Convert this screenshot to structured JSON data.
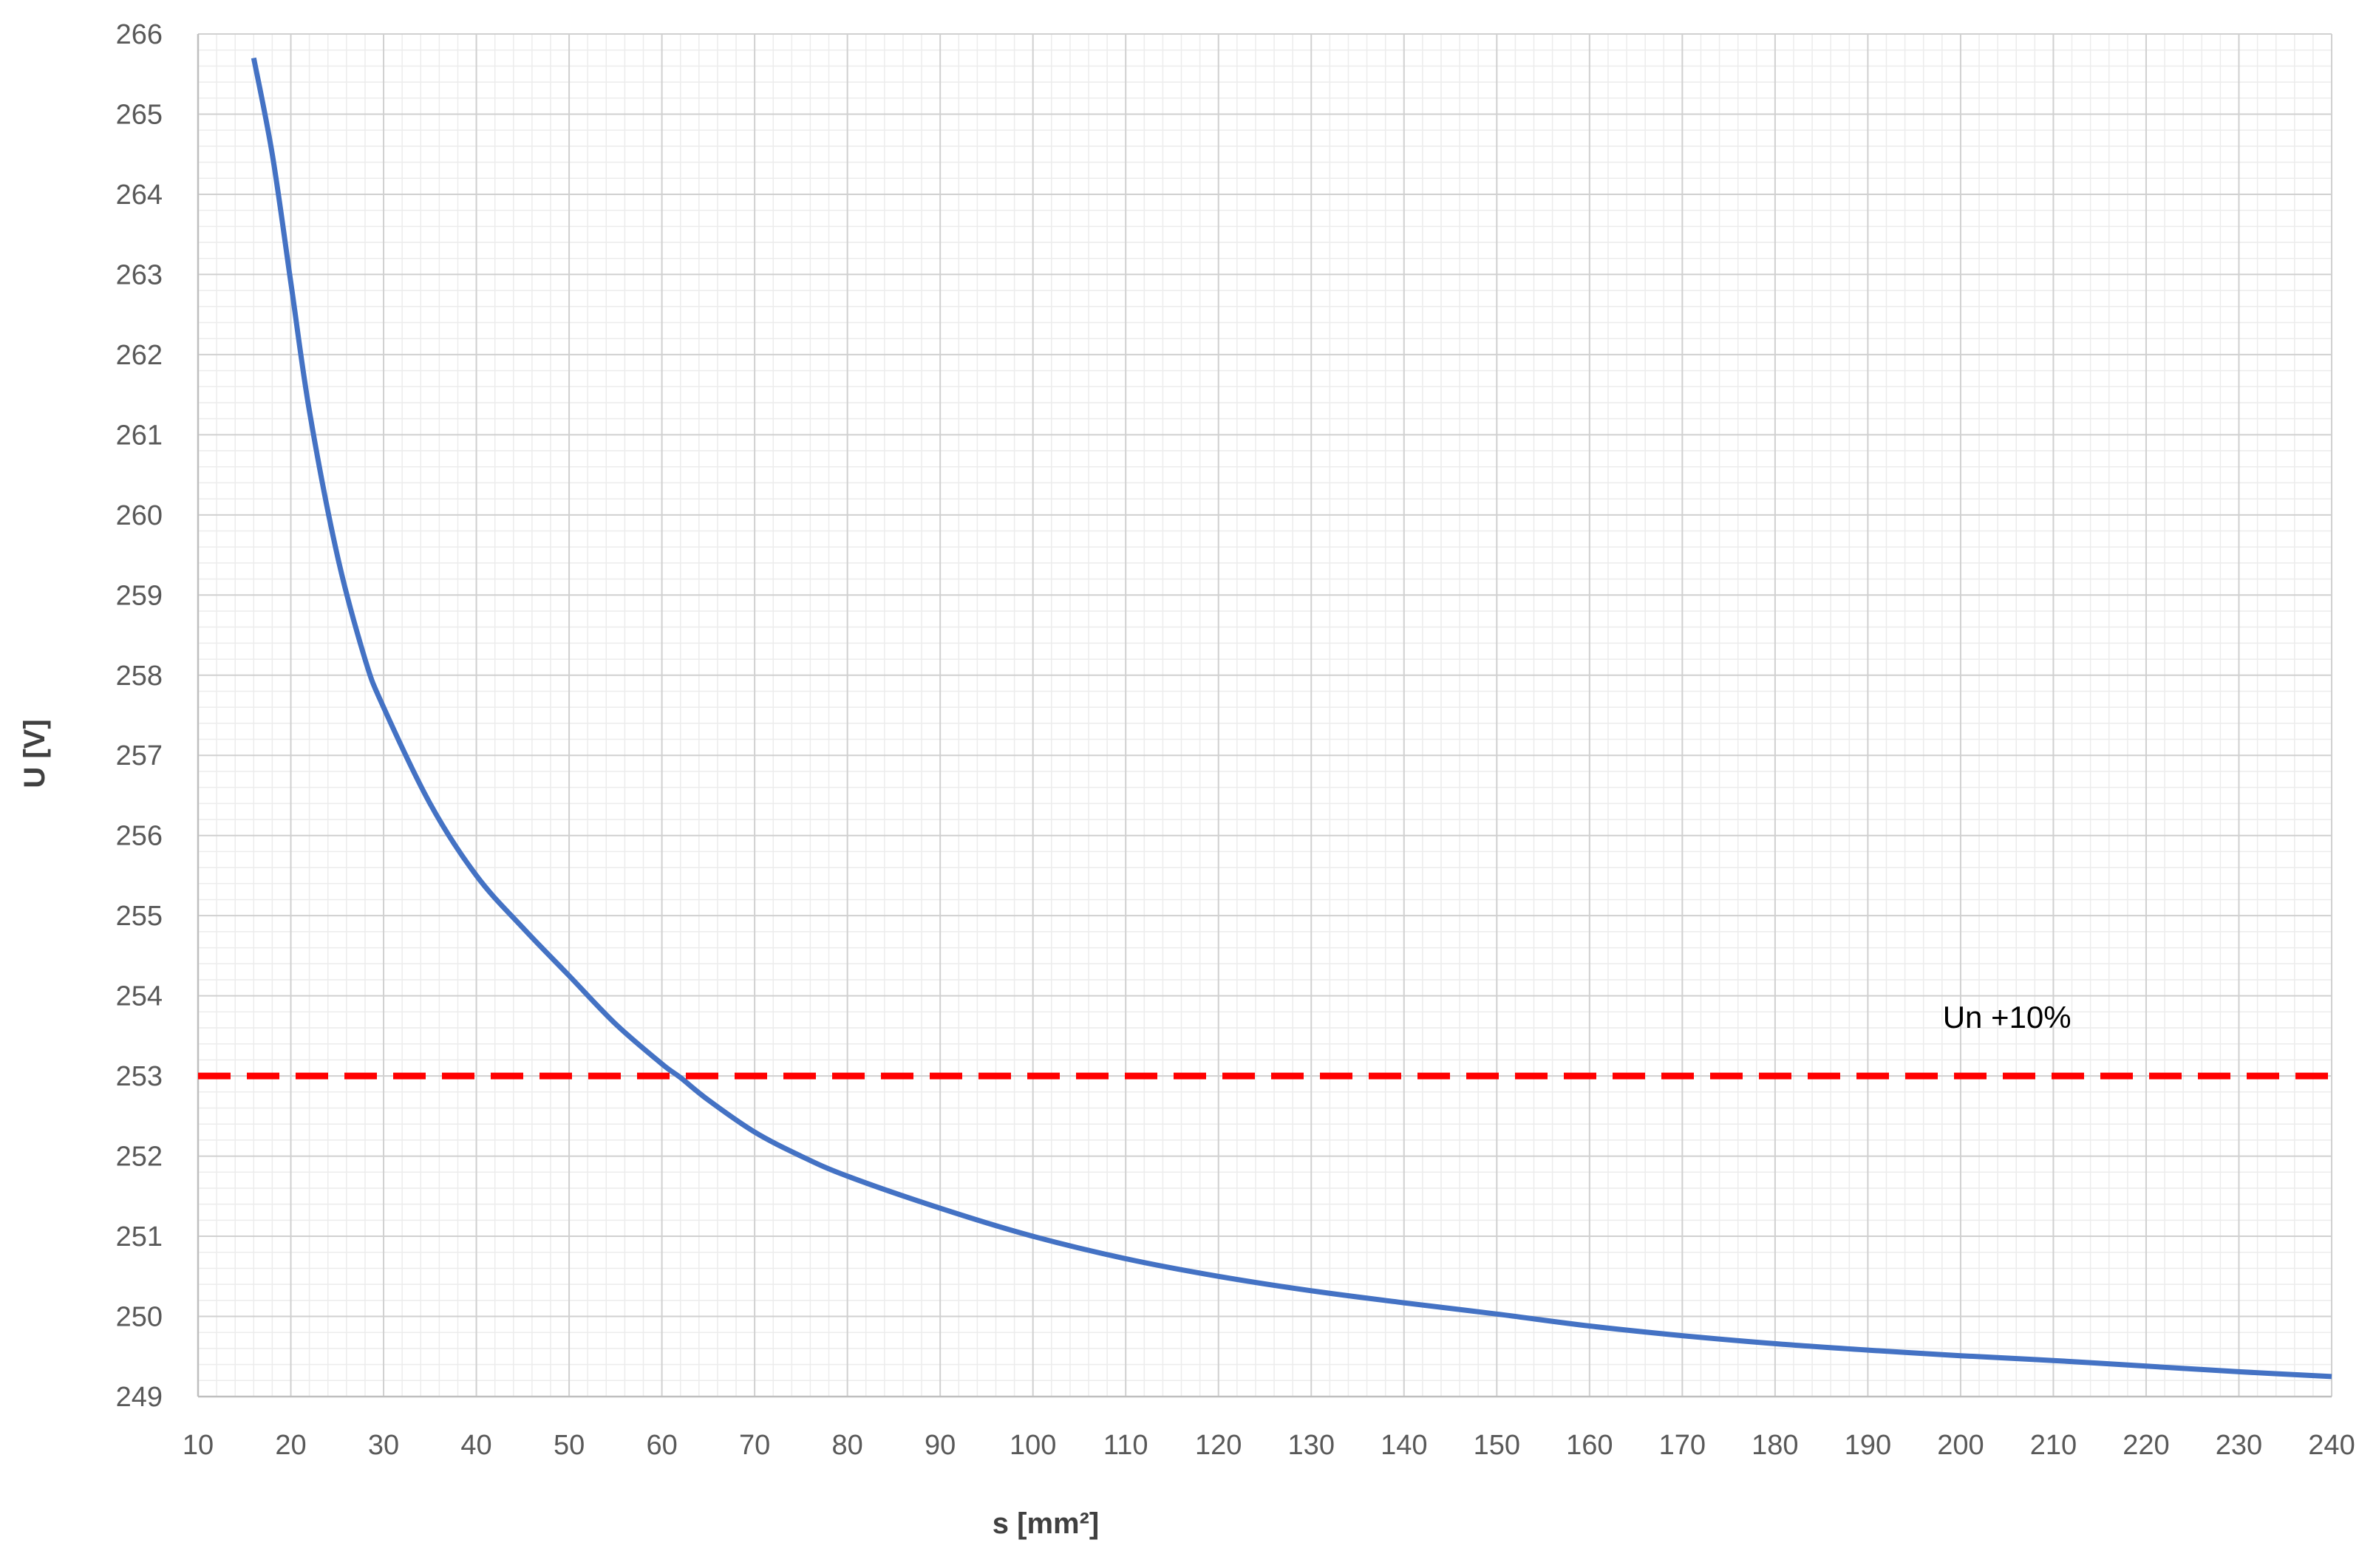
{
  "chart_data": {
    "type": "line",
    "title": "",
    "xlabel": "s [mm²]",
    "ylabel": "U [V]",
    "xlim": [
      10,
      240
    ],
    "ylim": [
      249,
      266
    ],
    "x_ticks": [
      10,
      20,
      30,
      40,
      50,
      60,
      70,
      80,
      90,
      100,
      110,
      120,
      130,
      140,
      150,
      160,
      170,
      180,
      190,
      200,
      210,
      220,
      230,
      240
    ],
    "y_ticks": [
      249,
      250,
      251,
      252,
      253,
      254,
      255,
      256,
      257,
      258,
      259,
      260,
      261,
      262,
      263,
      264,
      265,
      266
    ],
    "x_tick_labels": [
      "10",
      "20",
      "30",
      "40",
      "50",
      "60",
      "70",
      "80",
      "90",
      "100",
      "110",
      "120",
      "130",
      "140",
      "150",
      "160",
      "170",
      "180",
      "190",
      "200",
      "210",
      "220",
      "230",
      "240"
    ],
    "y_tick_labels": [
      "249",
      "250",
      "251",
      "252",
      "253",
      "254",
      "255",
      "256",
      "257",
      "258",
      "259",
      "260",
      "261",
      "262",
      "263",
      "264",
      "265",
      "266"
    ],
    "grid": true,
    "minor_grid": true,
    "series": [
      {
        "color": "#4472C4",
        "x": [
          16,
          18,
          20,
          22,
          25,
          28,
          30,
          35,
          40,
          45,
          50,
          55,
          60,
          62,
          65,
          70,
          75,
          80,
          90,
          100,
          110,
          120,
          130,
          140,
          150,
          160,
          170,
          180,
          190,
          200,
          210,
          220,
          230,
          240
        ],
        "y": [
          265.7,
          264.5,
          262.9,
          261.3,
          259.5,
          258.2,
          257.6,
          256.4,
          255.5,
          254.85,
          254.25,
          253.65,
          253.15,
          252.98,
          252.7,
          252.3,
          252.0,
          251.75,
          251.35,
          251.0,
          250.72,
          250.5,
          250.32,
          250.17,
          250.03,
          249.88,
          249.76,
          249.66,
          249.58,
          249.51,
          249.45,
          249.38,
          249.31,
          249.25
        ]
      },
      {
        "color": "#FF0000",
        "style": "dashed",
        "x": [
          10,
          240
        ],
        "y": [
          253,
          253
        ]
      }
    ],
    "annotations": [
      {
        "text": "Un +10%",
        "x": 205,
        "y": 253.6
      }
    ]
  }
}
